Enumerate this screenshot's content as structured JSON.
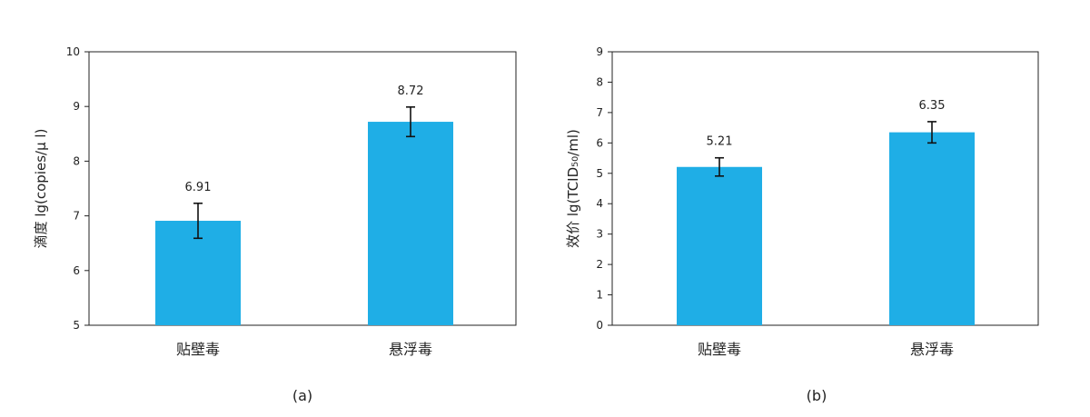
{
  "chart_data": [
    {
      "type": "bar",
      "panel_label": "(a)",
      "ylabel": "滴度 lg(copies/μ l)",
      "categories": [
        "贴壁毒",
        "悬浮毒"
      ],
      "values": [
        6.91,
        8.72
      ],
      "value_labels": [
        "6.91",
        "8.72"
      ],
      "error": [
        0.32,
        0.27
      ],
      "ylim": [
        5,
        10
      ],
      "yticks": [
        "5",
        "6",
        "7",
        "8",
        "9",
        "10"
      ],
      "bar_color": "#1FAEE6",
      "grid": false
    },
    {
      "type": "bar",
      "panel_label": "(b)",
      "ylabel": "效价 lg(TCID₅₀/ml)",
      "categories": [
        "贴壁毒",
        "悬浮毒"
      ],
      "values": [
        5.21,
        6.35
      ],
      "value_labels": [
        "5.21",
        "6.35"
      ],
      "error": [
        0.3,
        0.35
      ],
      "ylim": [
        0,
        9
      ],
      "yticks": [
        "0",
        "1",
        "2",
        "3",
        "4",
        "5",
        "6",
        "7",
        "8",
        "9"
      ],
      "bar_color": "#1FAEE6",
      "grid": false
    }
  ]
}
